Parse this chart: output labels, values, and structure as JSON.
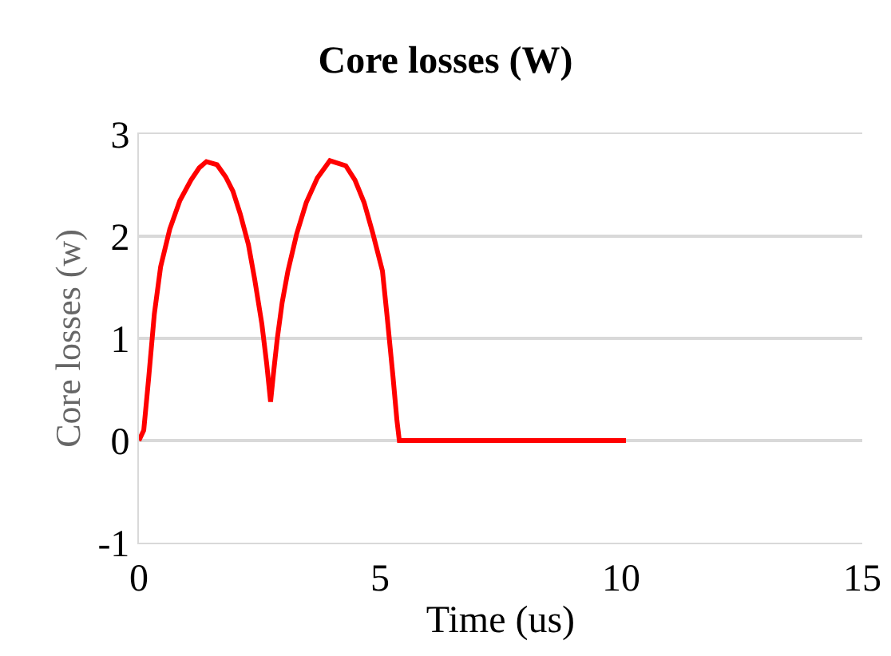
{
  "chart_data": {
    "type": "line",
    "title": "Core losses (W)",
    "xlabel": "Time (us)",
    "ylabel": "Core losses (w)",
    "x": [
      0,
      0.1,
      0.2,
      0.32,
      0.45,
      0.64,
      0.85,
      1.08,
      1.25,
      1.4,
      1.62,
      1.8,
      1.95,
      2.1,
      2.27,
      2.4,
      2.55,
      2.65,
      2.73,
      2.8,
      2.87,
      2.97,
      3.09,
      3.27,
      3.47,
      3.7,
      3.96,
      4.29,
      4.48,
      4.67,
      4.85,
      5.05,
      5.15,
      5.27,
      5.35,
      5.4,
      10.1
    ],
    "series": [
      {
        "color": "#ff0000",
        "values": [
          0,
          0.1,
          0.6,
          1.24,
          1.7,
          2.07,
          2.35,
          2.55,
          2.67,
          2.73,
          2.7,
          2.58,
          2.44,
          2.22,
          1.92,
          1.58,
          1.14,
          0.75,
          0.38,
          0.7,
          1.0,
          1.35,
          1.66,
          2.02,
          2.33,
          2.57,
          2.74,
          2.69,
          2.55,
          2.33,
          2.03,
          1.66,
          1.2,
          0.62,
          0.2,
          0,
          0
        ]
      }
    ],
    "xlim": [
      0,
      15
    ],
    "xticks": [
      0,
      5,
      10,
      15
    ],
    "ylim": [
      -1,
      3
    ],
    "yticks": [
      -1,
      0,
      1,
      2,
      3
    ],
    "grid": "y",
    "marker": "none",
    "line_style": "solid"
  }
}
